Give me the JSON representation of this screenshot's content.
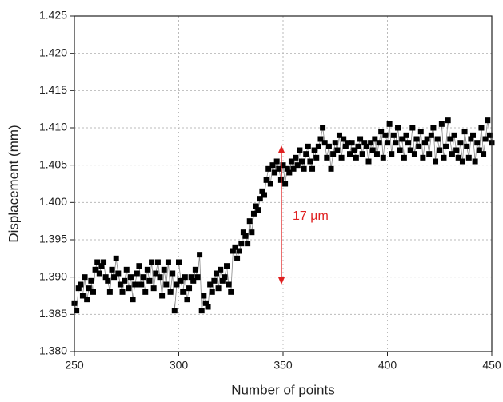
{
  "chart_data": {
    "type": "scatter-line",
    "x_label": "Number of points",
    "y_label": "Displacement (mm)",
    "annotation": "17 µm",
    "color": "#000000",
    "line_color": "#888888",
    "annotation_color": "#e02020",
    "xlim": [
      250,
      450
    ],
    "xticks": [
      250,
      300,
      350,
      400,
      450
    ],
    "ylim": [
      1.38,
      1.425
    ],
    "yticks": [
      {
        "value": 1.38,
        "label": "1.380"
      },
      1.385,
      {
        "value": 1.39,
        "label": "1.390"
      },
      1.395,
      {
        "value": 1.4,
        "label": "1.400"
      },
      1.405,
      {
        "value": 1.41,
        "label": "1.410"
      },
      1.415,
      {
        "value": 1.42,
        "label": "1.420"
      },
      1.425
    ],
    "grid": true,
    "x": [
      250,
      251,
      252,
      253,
      254,
      255,
      256,
      257,
      258,
      259,
      260,
      261,
      262,
      263,
      264,
      265,
      266,
      267,
      268,
      269,
      270,
      271,
      272,
      273,
      274,
      275,
      276,
      277,
      278,
      279,
      280,
      281,
      282,
      283,
      284,
      285,
      286,
      287,
      288,
      289,
      290,
      291,
      292,
      293,
      294,
      295,
      296,
      297,
      298,
      299,
      300,
      301,
      302,
      303,
      304,
      305,
      306,
      307,
      308,
      309,
      310,
      311,
      312,
      313,
      314,
      315,
      316,
      317,
      318,
      319,
      320,
      321,
      322,
      323,
      324,
      325,
      326,
      327,
      328,
      329,
      330,
      331,
      332,
      333,
      334,
      335,
      336,
      337,
      338,
      339,
      340,
      341,
      342,
      343,
      344,
      345,
      346,
      347,
      348,
      349,
      350,
      351,
      352,
      353,
      354,
      355,
      356,
      357,
      358,
      359,
      360,
      361,
      362,
      363,
      364,
      365,
      366,
      367,
      368,
      369,
      370,
      371,
      372,
      373,
      374,
      375,
      376,
      377,
      378,
      379,
      380,
      381,
      382,
      383,
      384,
      385,
      386,
      387,
      388,
      389,
      390,
      391,
      392,
      393,
      394,
      395,
      396,
      397,
      398,
      399,
      400,
      401,
      402,
      403,
      404,
      405,
      406,
      407,
      408,
      409,
      410,
      411,
      412,
      413,
      414,
      415,
      416,
      417,
      418,
      419,
      420,
      421,
      422,
      423,
      424,
      425,
      426,
      427,
      428,
      429,
      430,
      431,
      432,
      433,
      434,
      435,
      436,
      437,
      438,
      439,
      440,
      441,
      442,
      443,
      444,
      445,
      446,
      447,
      448,
      449,
      450
    ],
    "values": [
      1.3865,
      1.3855,
      1.3885,
      1.389,
      1.3875,
      1.39,
      1.387,
      1.3885,
      1.3895,
      1.388,
      1.391,
      1.392,
      1.3905,
      1.3915,
      1.392,
      1.39,
      1.3895,
      1.388,
      1.391,
      1.39,
      1.3925,
      1.3905,
      1.389,
      1.388,
      1.3895,
      1.391,
      1.3885,
      1.39,
      1.387,
      1.389,
      1.3905,
      1.3915,
      1.389,
      1.39,
      1.388,
      1.391,
      1.3895,
      1.392,
      1.3885,
      1.3905,
      1.392,
      1.39,
      1.3875,
      1.391,
      1.389,
      1.392,
      1.388,
      1.3905,
      1.3855,
      1.389,
      1.392,
      1.3895,
      1.388,
      1.39,
      1.387,
      1.3885,
      1.39,
      1.3895,
      1.391,
      1.39,
      1.393,
      1.3855,
      1.3875,
      1.3865,
      1.386,
      1.389,
      1.388,
      1.3895,
      1.3905,
      1.3885,
      1.391,
      1.3895,
      1.39,
      1.3915,
      1.389,
      1.388,
      1.3935,
      1.394,
      1.3925,
      1.3935,
      1.3945,
      1.396,
      1.3955,
      1.3945,
      1.3975,
      1.396,
      1.3985,
      1.3995,
      1.399,
      1.4005,
      1.4015,
      1.401,
      1.403,
      1.4045,
      1.4025,
      1.405,
      1.404,
      1.4055,
      1.4045,
      1.403,
      1.405,
      1.4025,
      1.4045,
      1.404,
      1.4055,
      1.4045,
      1.406,
      1.405,
      1.407,
      1.4055,
      1.4045,
      1.4065,
      1.4075,
      1.4055,
      1.4045,
      1.407,
      1.406,
      1.4075,
      1.4085,
      1.41,
      1.408,
      1.406,
      1.4075,
      1.4045,
      1.4065,
      1.408,
      1.407,
      1.409,
      1.406,
      1.4085,
      1.4075,
      1.408,
      1.4065,
      1.408,
      1.407,
      1.406,
      1.4075,
      1.4085,
      1.4065,
      1.408,
      1.4075,
      1.4055,
      1.408,
      1.407,
      1.4085,
      1.4065,
      1.408,
      1.4095,
      1.406,
      1.409,
      1.408,
      1.4105,
      1.4065,
      1.409,
      1.408,
      1.41,
      1.407,
      1.4085,
      1.406,
      1.409,
      1.408,
      1.407,
      1.41,
      1.4065,
      1.4085,
      1.4075,
      1.4095,
      1.406,
      1.408,
      1.4085,
      1.4065,
      1.409,
      1.41,
      1.4055,
      1.4085,
      1.407,
      1.4105,
      1.406,
      1.4075,
      1.411,
      1.4085,
      1.4065,
      1.409,
      1.407,
      1.406,
      1.408,
      1.4055,
      1.4095,
      1.4075,
      1.406,
      1.4085,
      1.409,
      1.4055,
      1.408,
      1.407,
      1.41,
      1.4065,
      1.4085,
      1.411,
      1.409,
      1.408
    ]
  }
}
